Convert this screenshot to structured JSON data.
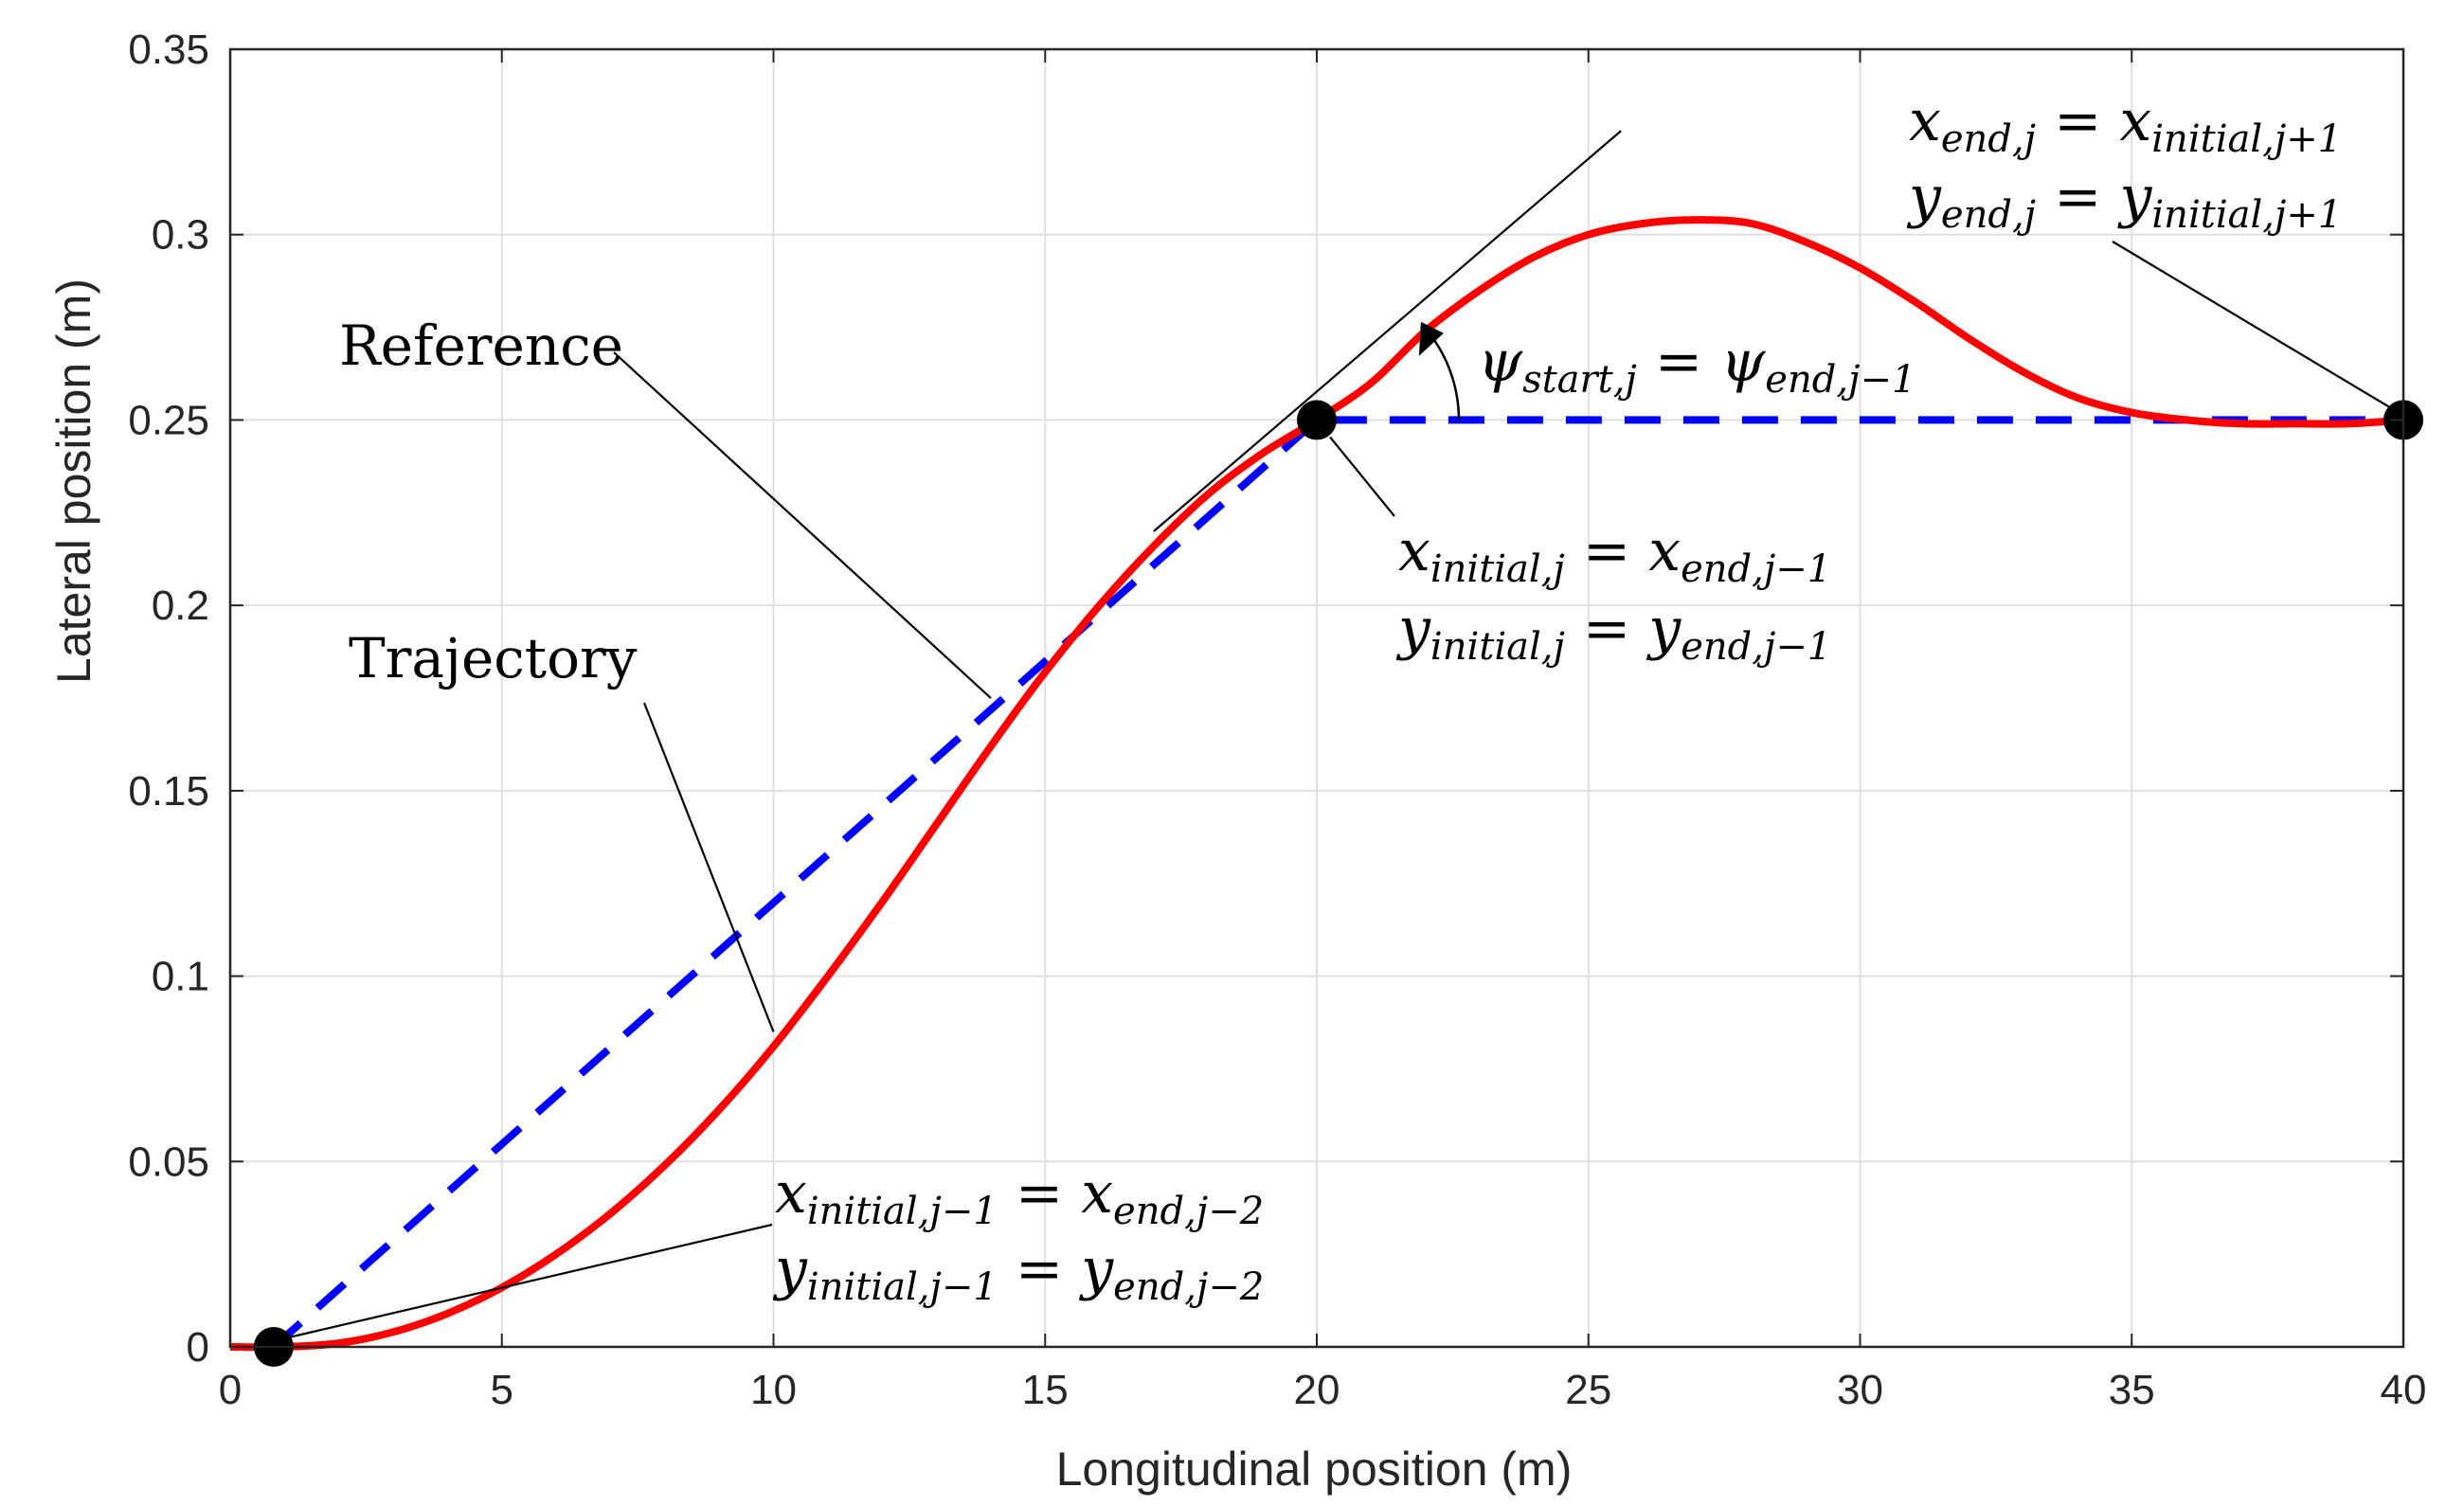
{
  "chart_data": {
    "type": "line",
    "title": "",
    "xlabel": "Longitudinal position (m)",
    "ylabel": "Lateral position (m)",
    "xlim": [
      0,
      40
    ],
    "ylim": [
      0,
      0.35
    ],
    "xticks": [
      0,
      5,
      10,
      15,
      20,
      25,
      30,
      35,
      40
    ],
    "yticks": [
      0,
      0.05,
      0.1,
      0.15,
      0.2,
      0.25,
      0.3,
      0.35
    ],
    "xtick_labels": [
      "0",
      "5",
      "10",
      "15",
      "20",
      "25",
      "30",
      "35",
      "40"
    ],
    "ytick_labels": [
      "0",
      "0.05",
      "0.1",
      "0.15",
      "0.2",
      "0.25",
      "0.3",
      "0.35"
    ],
    "grid": true,
    "series": [
      {
        "name": "Reference",
        "style": "dashed",
        "color": "#0000ff",
        "x": [
          0.8,
          20,
          40
        ],
        "y": [
          0,
          0.25,
          0.25
        ]
      },
      {
        "name": "Trajectory",
        "style": "solid",
        "color": "#ff0000",
        "x": [
          0,
          1,
          2,
          3,
          4,
          5,
          6,
          7,
          8,
          9,
          10,
          11,
          12,
          13,
          14,
          15,
          16,
          17,
          18,
          19,
          20,
          21,
          22,
          23,
          24,
          25,
          26,
          27,
          28,
          29,
          30,
          31,
          32,
          33,
          34,
          35,
          36,
          37,
          38,
          39,
          40
        ],
        "y": [
          0,
          0,
          0.001,
          0.004,
          0.009,
          0.016,
          0.025,
          0.036,
          0.049,
          0.064,
          0.081,
          0.1,
          0.12,
          0.141,
          0.162,
          0.182,
          0.2,
          0.216,
          0.23,
          0.241,
          0.25,
          0.26,
          0.274,
          0.285,
          0.294,
          0.3,
          0.303,
          0.304,
          0.303,
          0.298,
          0.291,
          0.282,
          0.272,
          0.263,
          0.256,
          0.252,
          0.25,
          0.249,
          0.249,
          0.249,
          0.25
        ]
      }
    ],
    "markers": [
      {
        "x": 0.8,
        "y": 0
      },
      {
        "x": 20,
        "y": 0.25
      },
      {
        "x": 40,
        "y": 0.25
      }
    ],
    "tangent_line": {
      "x": [
        17,
        25.6
      ],
      "y": [
        0.22,
        0.328
      ]
    },
    "annotations": [
      {
        "id": "reference",
        "lines": [
          {
            "text": "Reference",
            "sub": ""
          }
        ],
        "pointer": {
          "x": 14,
          "y": 0.175
        }
      },
      {
        "id": "trajectory",
        "lines": [
          {
            "text": "Trajectory",
            "sub": ""
          }
        ],
        "pointer": {
          "x": 10,
          "y": 0.085
        }
      },
      {
        "id": "psi",
        "lines": [
          {
            "text": "ψ",
            "sub": "start,j",
            "rest": " = ψ",
            "sub2": "end,j−1"
          }
        ]
      },
      {
        "id": "j",
        "lines": [
          {
            "text": "x",
            "sub": "initial,j",
            "rest": " = x",
            "sub2": "end,j−1"
          },
          {
            "text": "y",
            "sub": "initial,j",
            "rest": " = y",
            "sub2": "end,j−1"
          }
        ]
      },
      {
        "id": "jplus",
        "lines": [
          {
            "text": "x",
            "sub": "end,j",
            "rest": " = x",
            "sub2": "initial,j+1"
          },
          {
            "text": "y",
            "sub": "end,j",
            "rest": " = y",
            "sub2": "initial,j+1"
          }
        ]
      },
      {
        "id": "jminus",
        "lines": [
          {
            "text": "x",
            "sub": "initial,j−1",
            "rest": " = x",
            "sub2": "end,j−2"
          },
          {
            "text": "y",
            "sub": "initial,j−1",
            "rest": " = y",
            "sub2": "end,j−2"
          }
        ]
      }
    ]
  }
}
